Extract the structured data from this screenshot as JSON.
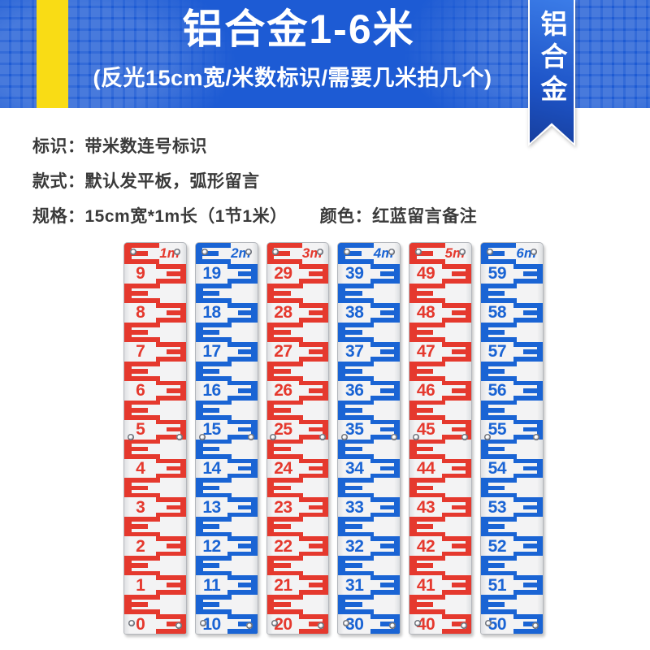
{
  "header": {
    "title": "铝合金1-6米",
    "subtitle": "(反光15cm宽/米数标识/需要几米拍几个)",
    "ribbon": "铝合金"
  },
  "colors": {
    "header_blue": "#1d5bd4",
    "stripe_yellow": "#f9dc15",
    "ribbon_blue_top": "#3b7ce8",
    "ribbon_blue_bottom": "#173f9e",
    "gauge_red": "#e5392e",
    "gauge_blue": "#1a64d4",
    "spec_text": "#3a3a3a",
    "panel_bg": "#f3f3f4"
  },
  "spec_lines": [
    {
      "text": "标识：带米数连号标识"
    },
    {
      "text": "款式：默认发平板，弧形留言"
    },
    {
      "text": "规格：15cm宽*1m长（1节1米）",
      "text2": "颜色：红蓝留言备注"
    }
  ],
  "rulers": [
    {
      "label": "1m",
      "color": "#e5392e",
      "numbers": [
        9,
        8,
        7,
        6,
        5,
        4,
        3,
        2,
        1,
        0
      ]
    },
    {
      "label": "2m",
      "color": "#1a64d4",
      "numbers": [
        19,
        18,
        17,
        16,
        15,
        14,
        13,
        12,
        11,
        10
      ]
    },
    {
      "label": "3m",
      "color": "#e5392e",
      "numbers": [
        29,
        28,
        27,
        26,
        25,
        24,
        23,
        22,
        21,
        20
      ]
    },
    {
      "label": "4m",
      "color": "#1a64d4",
      "numbers": [
        39,
        38,
        37,
        36,
        35,
        34,
        33,
        32,
        31,
        30
      ]
    },
    {
      "label": "5m",
      "color": "#e5392e",
      "numbers": [
        49,
        48,
        47,
        46,
        45,
        44,
        43,
        42,
        41,
        40
      ]
    },
    {
      "label": "6m",
      "color": "#1a64d4",
      "numbers": [
        59,
        58,
        57,
        56,
        55,
        54,
        53,
        52,
        51,
        50
      ]
    }
  ]
}
